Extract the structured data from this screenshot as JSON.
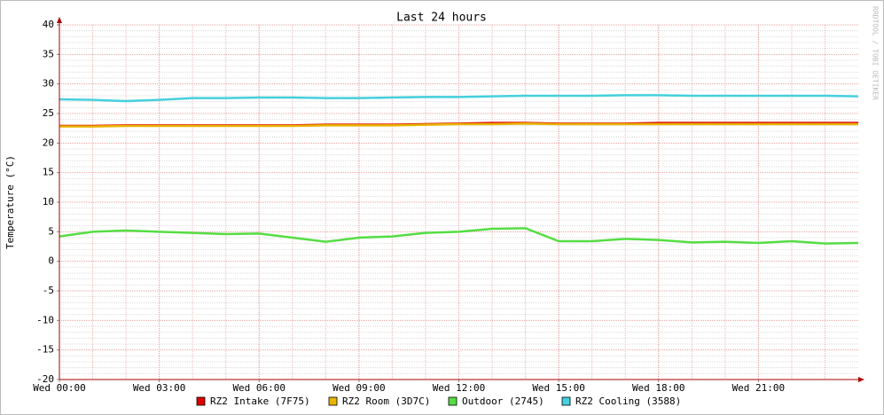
{
  "chart_data": {
    "type": "line",
    "title": "Last 24 hours",
    "y_label": "Temperature (°C)",
    "watermark": "RRDTOOL / TOBI OETIKER",
    "x": [
      0,
      1,
      2,
      3,
      4,
      5,
      6,
      7,
      8,
      9,
      10,
      11,
      12,
      13,
      14,
      15,
      16,
      17,
      18,
      19,
      20,
      21,
      22,
      23,
      24
    ],
    "xlim": [
      0,
      24
    ],
    "xticks": [
      {
        "value": 0,
        "label": "Wed 00:00"
      },
      {
        "value": 3,
        "label": "Wed 03:00"
      },
      {
        "value": 6,
        "label": "Wed 06:00"
      },
      {
        "value": 9,
        "label": "Wed 09:00"
      },
      {
        "value": 12,
        "label": "Wed 12:00"
      },
      {
        "value": 15,
        "label": "Wed 15:00"
      },
      {
        "value": 18,
        "label": "Wed 18:00"
      },
      {
        "value": 21,
        "label": "Wed 21:00"
      }
    ],
    "ylim": [
      -20,
      40
    ],
    "yticks": [
      -20,
      -15,
      -10,
      -5,
      0,
      5,
      10,
      15,
      20,
      25,
      30,
      35,
      40
    ],
    "grid": true,
    "legend": "bottom",
    "series": [
      {
        "name": "RZ2 Intake (7F75)",
        "color": "#dd0000",
        "values": [
          22.9,
          22.9,
          23.0,
          23.0,
          23.0,
          23.0,
          23.0,
          23.0,
          23.1,
          23.1,
          23.1,
          23.2,
          23.3,
          23.4,
          23.4,
          23.3,
          23.3,
          23.3,
          23.4,
          23.4,
          23.4,
          23.4,
          23.4,
          23.4,
          23.4
        ]
      },
      {
        "name": "RZ2 Room (3D7C)",
        "color": "#e8b400",
        "values": [
          22.8,
          22.8,
          22.9,
          22.9,
          22.9,
          22.9,
          22.9,
          22.9,
          23.0,
          23.0,
          23.0,
          23.1,
          23.2,
          23.2,
          23.3,
          23.2,
          23.2,
          23.2,
          23.2,
          23.2,
          23.2,
          23.2,
          23.2,
          23.2,
          23.2
        ]
      },
      {
        "name": "Outdoor (2745)",
        "color": "#55dd44",
        "values": [
          4.2,
          5.0,
          5.2,
          5.0,
          4.8,
          4.6,
          4.7,
          4.0,
          3.3,
          4.0,
          4.2,
          4.8,
          5.0,
          5.5,
          5.6,
          3.4,
          3.4,
          3.8,
          3.6,
          3.2,
          3.3,
          3.1,
          3.4,
          3.0,
          3.1
        ]
      },
      {
        "name": "RZ2 Cooling (3588)",
        "color": "#44d0dd",
        "values": [
          27.4,
          27.3,
          27.1,
          27.3,
          27.6,
          27.6,
          27.7,
          27.7,
          27.6,
          27.6,
          27.7,
          27.8,
          27.8,
          27.9,
          28.0,
          28.0,
          28.0,
          28.1,
          28.1,
          28.0,
          28.0,
          28.0,
          28.0,
          28.0,
          27.9
        ]
      }
    ]
  }
}
